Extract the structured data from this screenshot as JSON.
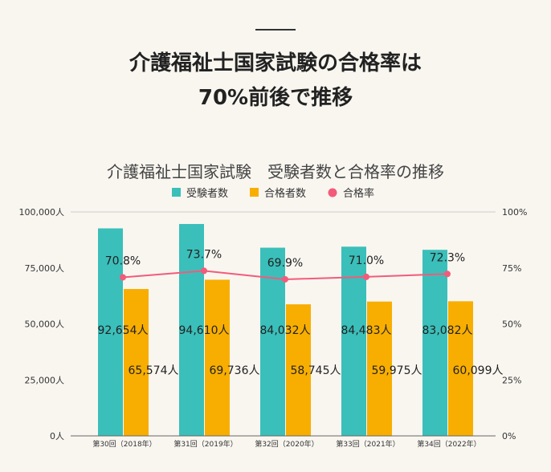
{
  "heading": {
    "line1": "介護福祉士国家試験の合格率は",
    "line2": "70%前後で推移"
  },
  "chart_data": {
    "type": "bar+line",
    "title": "介護福祉士国家試験　受験者数と合格率の推移",
    "categories": [
      "第30回（2018年）",
      "第31回（2019年）",
      "第32回（2020年）",
      "第33回（2021年）",
      "第34回（2022年）"
    ],
    "series": [
      {
        "name": "受験者数",
        "type": "bar",
        "axis": "left",
        "color": "#3bbfba",
        "values": [
          92654,
          94610,
          84032,
          84483,
          83082
        ],
        "labels": [
          "92,654人",
          "94,610人",
          "84,032人",
          "84,483人",
          "83,082人"
        ]
      },
      {
        "name": "合格者数",
        "type": "bar",
        "axis": "left",
        "color": "#f8ae00",
        "values": [
          65574,
          69736,
          58745,
          59975,
          60099
        ],
        "labels": [
          "65,574人",
          "69,736人",
          "58,745人",
          "59,975人",
          "60,099人"
        ]
      },
      {
        "name": "合格率",
        "type": "line",
        "axis": "right",
        "color": "#f35b7a",
        "values": [
          70.8,
          73.7,
          69.9,
          71.0,
          72.3
        ],
        "labels": [
          "70.8%",
          "73.7%",
          "69.9%",
          "71.0%",
          "72.3%"
        ]
      }
    ],
    "left_axis": {
      "ylim": [
        0,
        100000
      ],
      "ticks": [
        "0人",
        "25,000人",
        "50,000人",
        "75,000人",
        "100,000人"
      ]
    },
    "right_axis": {
      "ylim": [
        0,
        100
      ],
      "ticks": [
        "0%",
        "25%",
        "50%",
        "75%",
        "100%"
      ]
    },
    "grid": "top-line-only",
    "legend": "top-center"
  }
}
